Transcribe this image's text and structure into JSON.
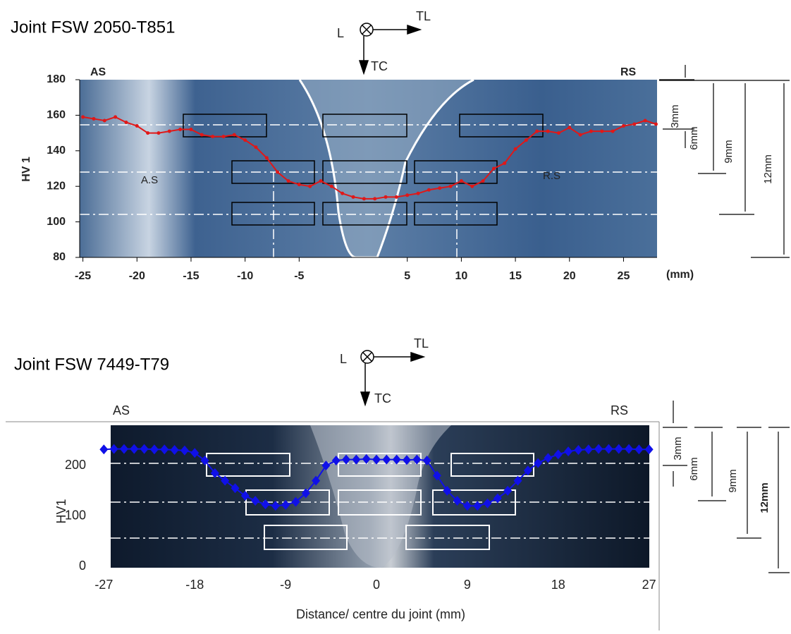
{
  "chart_data": [
    {
      "type": "line",
      "title": "Joint FSW 2050-T851",
      "y_label": "HV 1",
      "annotations": [
        "AS",
        "RS",
        "L",
        "TL",
        "TC",
        "A.S",
        "R.S",
        "(mm)",
        "3mm",
        "6mm",
        "9mm",
        "12mm"
      ],
      "x": [
        -25,
        -24,
        -23,
        -22,
        -21,
        -20,
        -19,
        -18,
        -17,
        -16,
        -15,
        -14,
        -13,
        -12,
        -11,
        -10,
        -9,
        -8,
        -7,
        -6,
        -5,
        -4,
        -3,
        -2,
        -1,
        0,
        1,
        2,
        3,
        4,
        5,
        6,
        7,
        8,
        9,
        10,
        11,
        12,
        13,
        14,
        15,
        16,
        17,
        18,
        19,
        20,
        21,
        22,
        23,
        24,
        25,
        26,
        27,
        28
      ],
      "series": [
        {
          "color": "#e01818",
          "values": [
            159,
            158,
            157,
            159,
            156,
            154,
            150,
            150,
            151,
            152,
            152,
            149,
            148,
            148,
            149,
            146,
            142,
            136,
            128,
            123,
            121,
            120,
            123,
            120,
            116,
            114,
            113,
            113,
            114,
            114,
            115,
            116,
            118,
            119,
            120,
            123,
            120,
            123,
            130,
            133,
            141,
            146,
            151,
            151,
            150,
            153,
            149,
            151,
            151,
            151,
            154,
            155,
            157,
            155
          ]
        }
      ],
      "xlim": [
        -25.3,
        28.1
      ],
      "ylim": [
        80,
        180
      ],
      "xticks": [
        -25,
        -20,
        -15,
        -10,
        -5,
        5,
        10,
        15,
        20,
        25
      ],
      "yticks": [
        80,
        100,
        120,
        140,
        160,
        180
      ]
    },
    {
      "type": "line",
      "title": "Joint FSW 7449-T79",
      "y_label": "HV1",
      "x_label": "Distance/ centre du joint (mm)",
      "annotations": [
        "AS",
        "RS",
        "L",
        "TL",
        "TC",
        "3mm",
        "6mm",
        "9mm",
        "12mm"
      ],
      "x": [
        -27,
        -26,
        -25,
        -24,
        -23,
        -22,
        -21,
        -20,
        -19,
        -18,
        -17,
        -16,
        -15,
        -14,
        -13,
        -12,
        -11,
        -10,
        -9,
        -8,
        -7,
        -6,
        -5,
        -4,
        -3,
        -2,
        -1,
        0,
        1,
        2,
        3,
        4,
        5,
        6,
        7,
        8,
        9,
        10,
        11,
        12,
        13,
        14,
        15,
        16,
        17,
        18,
        19,
        20,
        21,
        22,
        23,
        24,
        25,
        26,
        27
      ],
      "series": [
        {
          "color": "#1010e8",
          "values": [
            232,
            233,
            233,
            233,
            233,
            232,
            232,
            231,
            230,
            225,
            210,
            185,
            170,
            155,
            140,
            130,
            123,
            120,
            122,
            128,
            145,
            170,
            200,
            210,
            212,
            212,
            213,
            212,
            212,
            212,
            211,
            212,
            210,
            180,
            150,
            130,
            120,
            120,
            125,
            135,
            150,
            170,
            190,
            205,
            215,
            222,
            228,
            231,
            232,
            233,
            233,
            233,
            233,
            232,
            232
          ]
        }
      ],
      "xlim": [
        -28,
        28
      ],
      "ylim": [
        0,
        280
      ],
      "xticks": [
        -27,
        -18,
        -9,
        0,
        9,
        18,
        27
      ],
      "yticks": [
        0,
        100,
        200
      ]
    }
  ]
}
